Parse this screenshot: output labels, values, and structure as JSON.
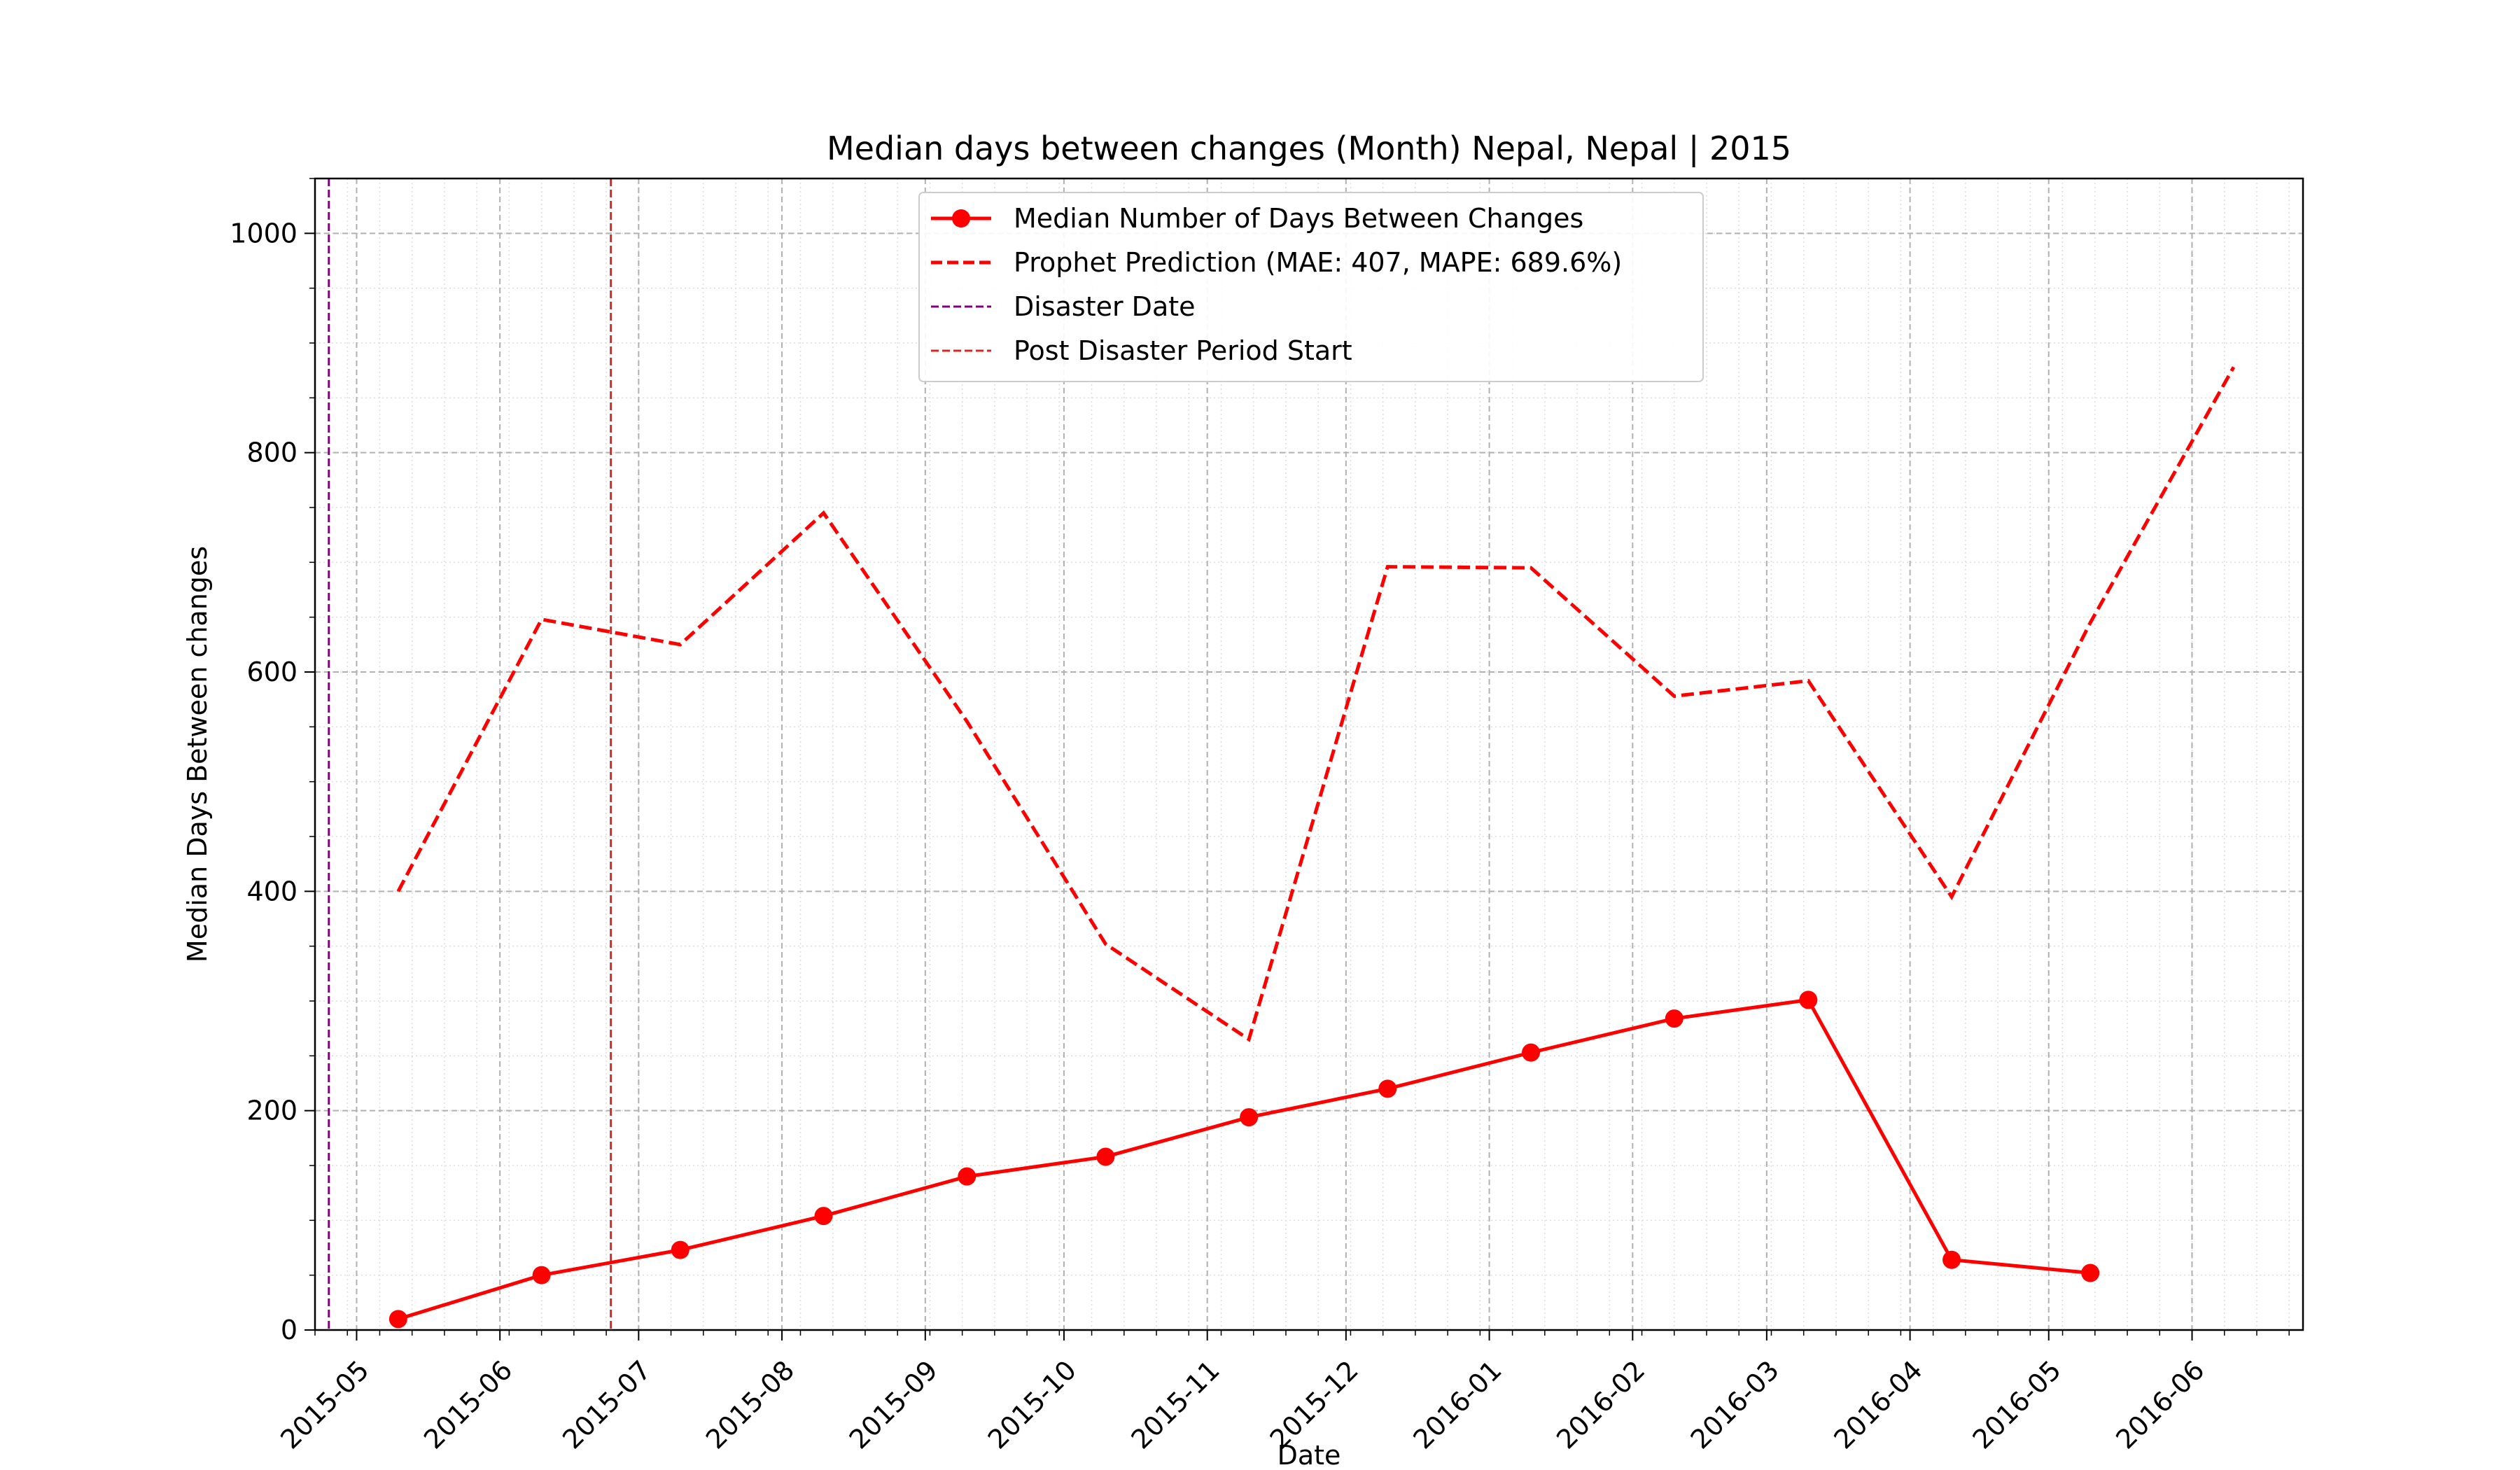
{
  "chart_data": {
    "type": "line",
    "title": "Median days between changes (Month) Nepal, Nepal | 2015",
    "xlabel": "Date",
    "ylabel": "Median Days Between changes",
    "xlim": [
      "2015-04-22",
      "2016-06-25"
    ],
    "ylim": [
      0,
      1050
    ],
    "x_ticks": [
      "2015-05",
      "2015-06",
      "2015-07",
      "2015-08",
      "2015-09",
      "2015-10",
      "2015-11",
      "2015-12",
      "2016-01",
      "2016-02",
      "2016-03",
      "2016-04",
      "2016-05",
      "2016-06"
    ],
    "y_ticks": [
      0,
      200,
      400,
      600,
      800,
      1000
    ],
    "grid": true,
    "legend_position": "top-center",
    "series": [
      {
        "name": "Median Number of Days Between Changes",
        "style": "solid-markers",
        "color": "#ff0000",
        "x": [
          "2015-05-10",
          "2015-06-10",
          "2015-07-10",
          "2015-08-10",
          "2015-09-10",
          "2015-10-10",
          "2015-11-10",
          "2015-12-10",
          "2016-01-10",
          "2016-02-10",
          "2016-03-10",
          "2016-04-10",
          "2016-05-10"
        ],
        "values": [
          10,
          50,
          73,
          104,
          140,
          158,
          194,
          220,
          253,
          284,
          301,
          64,
          52
        ]
      },
      {
        "name": "Prophet Prediction (MAE: 407, MAPE: 689.6%)",
        "style": "dashed",
        "color": "#ff0000",
        "x": [
          "2015-05-10",
          "2015-06-10",
          "2015-07-10",
          "2015-08-10",
          "2015-09-10",
          "2015-10-10",
          "2015-11-10",
          "2015-12-10",
          "2016-01-10",
          "2016-02-10",
          "2016-03-10",
          "2016-04-10",
          "2016-05-10",
          "2016-06-10"
        ],
        "values": [
          400,
          648,
          625,
          745,
          555,
          352,
          265,
          696,
          695,
          578,
          592,
          395,
          645,
          878
        ]
      }
    ],
    "vlines": [
      {
        "name": "Disaster Date",
        "x": "2015-04-25",
        "color": "#800080"
      },
      {
        "name": "Post Disaster Period Start",
        "x": "2015-06-25",
        "color": "#d62728"
      }
    ]
  }
}
